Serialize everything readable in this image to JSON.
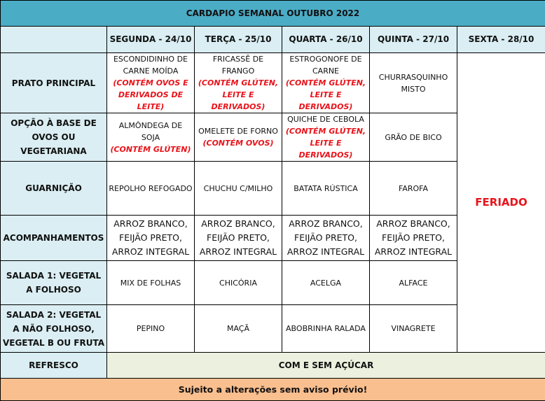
{
  "title": "CARDAPIO SEMANAL OUTUBRO 2022",
  "days": [
    "SEGUNDA - 24/10",
    "TERÇA - 25/10",
    "QUARTA - 26/10",
    "QUINTA - 27/10",
    "SEXTA - 28/10"
  ],
  "rows": [
    {
      "label": "PRATO PRINCIPAL",
      "cells": [
        {
          "dish": "ESCONDIDINHO DE CARNE MOÍDA",
          "warning": "(CONTÉM OVOS E DERIVADOS DE LEITE)"
        },
        {
          "dish": "FRICASSÊ DE FRANGO",
          "warning": "(CONTÉM GLÚTEN, LEITE E DERIVADOS)"
        },
        {
          "dish": "ESTROGONOFE DE CARNE",
          "warning": "(CONTÉM GLÚTEN, LEITE E DERIVADOS)"
        },
        {
          "dish": "CHURRASQUINHO MISTO"
        }
      ]
    },
    {
      "label": "OPÇÃO À BASE DE OVOS OU VEGETARIANA",
      "cells": [
        {
          "dish": "ALMÔNDEGA DE SOJA",
          "warning": "(CONTÉM GLÚTEN)"
        },
        {
          "dish": "OMELETE DE FORNO",
          "warning": "(CONTÉM OVOS)"
        },
        {
          "dish": "QUICHE DE CEBOLA",
          "warning": "(CONTÉM GLÚTEN, LEITE E DERIVADOS)"
        },
        {
          "dish": "GRÃO DE BICO"
        }
      ]
    },
    {
      "label": "GUARNIÇÃO",
      "cells": [
        {
          "dish": "REPOLHO REFOGADO"
        },
        {
          "dish": "CHUCHU C/MILHO"
        },
        {
          "dish": "BATATA RÚSTICA"
        },
        {
          "dish": "FAROFA"
        }
      ]
    },
    {
      "label": "ACOMPANHAMENTOS",
      "cells": [
        {
          "dish": "ARROZ BRANCO, FEIJÃO PRETO, ARROZ INTEGRAL"
        },
        {
          "dish": "ARROZ BRANCO, FEIJÃO PRETO, ARROZ INTEGRAL"
        },
        {
          "dish": "ARROZ BRANCO, FEIJÃO PRETO, ARROZ INTEGRAL"
        },
        {
          "dish": "ARROZ BRANCO, FEIJÃO PRETO, ARROZ INTEGRAL"
        }
      ]
    },
    {
      "label": "SALADA 1: VEGETAL A FOLHOSO",
      "cells": [
        {
          "dish": "MIX DE FOLHAS"
        },
        {
          "dish": "CHICÓRIA"
        },
        {
          "dish": "ACELGA"
        },
        {
          "dish": "ALFACE"
        }
      ]
    },
    {
      "label": "SALADA 2: VEGETAL A NÃO FOLHOSO, VEGETAL B OU FRUTA",
      "cells": [
        {
          "dish": "PEPINO"
        },
        {
          "dish": "MAÇÃ"
        },
        {
          "dish": "ABOBRINHA RALADA"
        },
        {
          "dish": "VINAGRETE"
        }
      ]
    }
  ],
  "friday": "FERIADO",
  "refresco": {
    "label": "REFRESCO",
    "value": "COM E SEM AÇÚCAR"
  },
  "footer": "Sujeito a alterações sem aviso prévio!",
  "colors": {
    "title_bg": "#4bacc6",
    "header_bg": "#daeef3",
    "refresco_bg": "#ebf1de",
    "footer_bg": "#fabf8f",
    "warning": "#e8141b"
  }
}
